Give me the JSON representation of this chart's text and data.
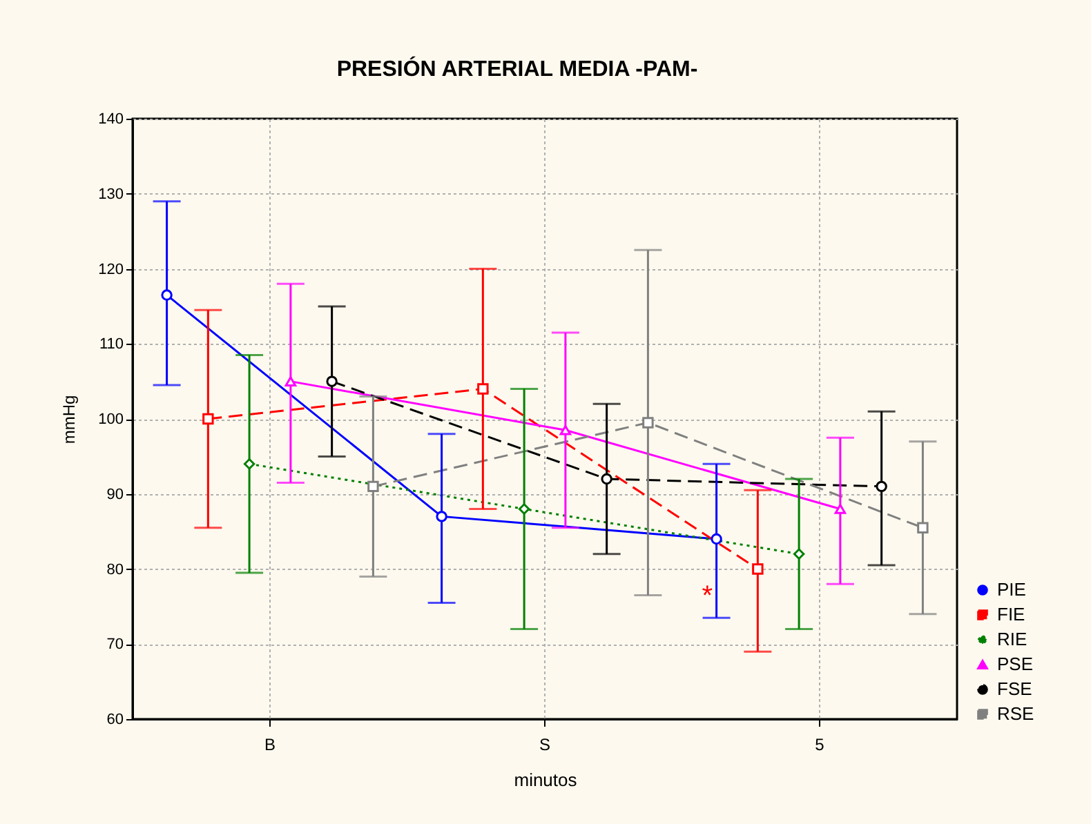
{
  "chart_data": {
    "type": "line",
    "title": "PRESIÓN ARTERIAL MEDIA -PAM-",
    "xlabel": "minutos",
    "ylabel": "mmHg",
    "categories": [
      "B",
      "S",
      "5"
    ],
    "series": [
      {
        "name": "PIE",
        "color": "#0000ff",
        "marker": "circle",
        "line_style": "solid",
        "values": [
          116.5,
          87,
          84
        ],
        "errors": [
          [
            104.5,
            129
          ],
          [
            75.5,
            98
          ],
          [
            73.5,
            94
          ]
        ]
      },
      {
        "name": "FIE",
        "color": "#ff0000",
        "marker": "square",
        "line_style": "dashed",
        "values": [
          100,
          104,
          80
        ],
        "errors": [
          [
            85.5,
            114.5
          ],
          [
            88,
            120
          ],
          [
            69,
            90.5
          ]
        ]
      },
      {
        "name": "RIE",
        "color": "#008000",
        "marker": "diamond",
        "line_style": "dotted",
        "values": [
          94,
          88,
          82
        ],
        "errors": [
          [
            79.5,
            108.5
          ],
          [
            72,
            104
          ],
          [
            72,
            92
          ]
        ]
      },
      {
        "name": "PSE",
        "color": "#ff00ff",
        "marker": "triangle",
        "line_style": "solid",
        "values": [
          105,
          98.5,
          88
        ],
        "errors": [
          [
            91.5,
            118
          ],
          [
            85.5,
            111.5
          ],
          [
            78,
            97.5
          ]
        ]
      },
      {
        "name": "FSE",
        "color": "#000000",
        "marker": "circle",
        "line_style": "dashed",
        "values": [
          105,
          92,
          91
        ],
        "errors": [
          [
            95,
            115
          ],
          [
            82,
            102
          ],
          [
            80.5,
            101
          ]
        ]
      },
      {
        "name": "RSE",
        "color": "#808080",
        "marker": "square",
        "line_style": "dashed",
        "values": [
          91,
          99.5,
          85.5
        ],
        "errors": [
          [
            79,
            103
          ],
          [
            76.5,
            122.5
          ],
          [
            74,
            97
          ]
        ]
      }
    ],
    "annotations": [
      "*"
    ],
    "ylim": [
      60,
      140
    ],
    "yticks": [
      60,
      70,
      80,
      90,
      100,
      110,
      120,
      130,
      140
    ],
    "grid": true,
    "legend": "bottom right"
  }
}
